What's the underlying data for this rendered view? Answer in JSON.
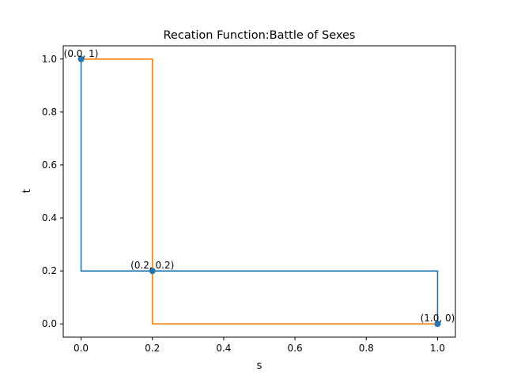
{
  "chart_data": {
    "type": "line",
    "title": "Recation Function:Battle of Sexes",
    "xlabel": "s",
    "ylabel": "t",
    "xlim": [
      -0.05,
      1.05
    ],
    "ylim": [
      -0.05,
      1.05
    ],
    "xticks": [
      0.0,
      0.2,
      0.4,
      0.6,
      0.8,
      1.0
    ],
    "yticks": [
      0.0,
      0.2,
      0.4,
      0.6,
      0.8,
      1.0
    ],
    "xtick_labels": [
      "0.0",
      "0.2",
      "0.4",
      "0.6",
      "0.8",
      "1.0"
    ],
    "ytick_labels": [
      "0.0",
      "0.2",
      "0.4",
      "0.6",
      "0.8",
      "1.0"
    ],
    "grid": false,
    "series": [
      {
        "color": "#1f77b4",
        "x": [
          0.0,
          0.0,
          1.0,
          1.0
        ],
        "y": [
          1.0,
          0.2,
          0.2,
          0.0
        ]
      },
      {
        "color": "#ff7f0e",
        "x": [
          0.0,
          0.2,
          0.2,
          1.0
        ],
        "y": [
          1.0,
          1.0,
          0.0,
          0.0
        ]
      }
    ],
    "points": {
      "color": "#1f77b4",
      "x": [
        0.0,
        0.2,
        1.0
      ],
      "y": [
        1.0,
        0.2,
        0.0
      ],
      "labels": [
        "(0.0, 1)",
        "(0.2, 0.2)",
        "(1.0, 0)"
      ]
    }
  }
}
